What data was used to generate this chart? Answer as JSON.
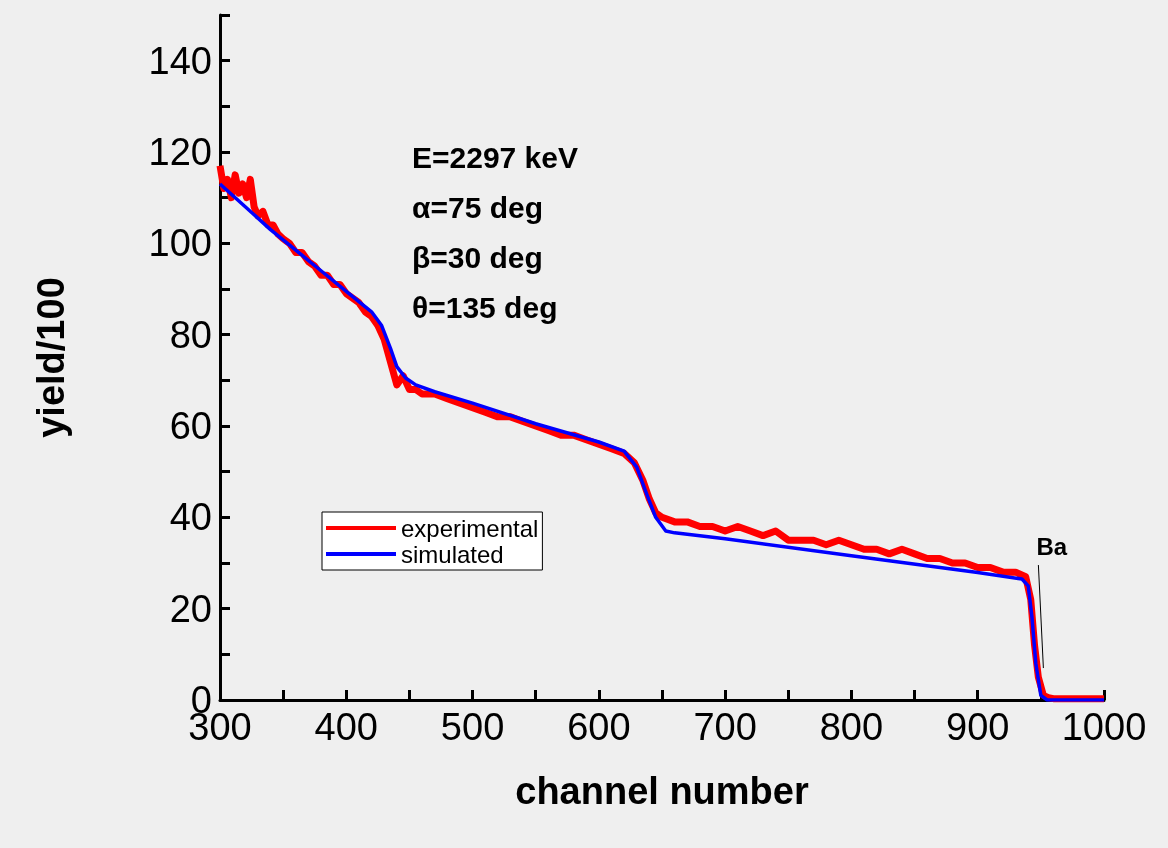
{
  "chart_data": {
    "type": "line",
    "xlabel": "channel number",
    "ylabel": "yield/100",
    "xlim": [
      300,
      1000
    ],
    "xticks": [
      300,
      {
        "value": 350,
        "label": null
      },
      400,
      {
        "value": 450,
        "label": null
      },
      500,
      {
        "value": 550,
        "label": null
      },
      600,
      {
        "value": 650,
        "label": null
      },
      700,
      {
        "value": 750,
        "label": null
      },
      800,
      {
        "value": 850,
        "label": null
      },
      900,
      {
        "value": 950,
        "label": null
      },
      1000
    ],
    "ylim": [
      0,
      150
    ],
    "yticks": [
      0,
      {
        "value": 10,
        "label": null
      },
      20,
      {
        "value": 30,
        "label": null
      },
      40,
      {
        "value": 50,
        "label": null
      },
      60,
      {
        "value": 70,
        "label": null
      },
      80,
      {
        "value": 90,
        "label": null
      },
      100,
      {
        "value": 110,
        "label": null
      },
      120,
      {
        "value": 130,
        "label": null
      },
      140,
      {
        "value": 150,
        "label": null
      }
    ],
    "grid": false,
    "legend": "bottom left",
    "marker": "none",
    "line_style": "solid",
    "series": [
      {
        "name": "experimental",
        "color": "#ff0000",
        "x": [
          300,
          303,
          306,
          309,
          312,
          315,
          318,
          321,
          324,
          327,
          330,
          334,
          338,
          342,
          346,
          350,
          355,
          360,
          365,
          370,
          375,
          380,
          385,
          390,
          395,
          400,
          405,
          410,
          415,
          420,
          425,
          430,
          435,
          440,
          445,
          450,
          455,
          460,
          470,
          480,
          490,
          500,
          510,
          520,
          530,
          540,
          550,
          560,
          570,
          580,
          590,
          600,
          610,
          620,
          628,
          635,
          640,
          645,
          650,
          660,
          670,
          680,
          690,
          700,
          710,
          720,
          730,
          740,
          750,
          760,
          770,
          780,
          790,
          800,
          810,
          820,
          830,
          840,
          850,
          860,
          870,
          880,
          890,
          900,
          910,
          920,
          930,
          938,
          942,
          945,
          948,
          952,
          956,
          960,
          1000
        ],
        "values": [
          117,
          112,
          114,
          110,
          115,
          111,
          113,
          110,
          114,
          108,
          106,
          107,
          104,
          104,
          102,
          101,
          100,
          98,
          98,
          96,
          95,
          93,
          93,
          91,
          91,
          89,
          88,
          87,
          85,
          84,
          82,
          79,
          74,
          69,
          71,
          68,
          68,
          67,
          67,
          66,
          65,
          64,
          63,
          62,
          62,
          61,
          60,
          59,
          58,
          58,
          57,
          56,
          55,
          54,
          52,
          48,
          44,
          41,
          40,
          39,
          39,
          38,
          38,
          37,
          38,
          37,
          36,
          37,
          35,
          35,
          35,
          34,
          35,
          34,
          33,
          33,
          32,
          33,
          32,
          31,
          31,
          30,
          30,
          29,
          29,
          28,
          28,
          27,
          22,
          12,
          5,
          1,
          0.5,
          0.3,
          0.3
        ]
      },
      {
        "name": "simulated",
        "color": "#0000ff",
        "x": [
          300,
          320,
          340,
          360,
          380,
          400,
          420,
          428,
          435,
          440,
          447,
          455,
          470,
          500,
          550,
          600,
          620,
          630,
          638,
          645,
          653,
          660,
          700,
          800,
          900,
          935,
          940,
          943,
          946,
          950,
          955,
          1000
        ],
        "values": [
          113,
          108,
          103,
          98.5,
          94,
          89.5,
          85,
          82,
          77,
          73,
          70.5,
          69,
          67.5,
          65,
          60.5,
          56.5,
          54.5,
          51,
          45,
          40,
          37,
          36.6,
          35.3,
          31.6,
          27.9,
          26.5,
          25,
          18,
          8,
          1,
          0,
          0
        ]
      }
    ],
    "annotations": [
      "E=2297 keV",
      "α=75 deg",
      "β=30 deg",
      "θ=135 deg",
      {
        "text": "Ba",
        "x": 952,
        "y": 7
      }
    ]
  }
}
